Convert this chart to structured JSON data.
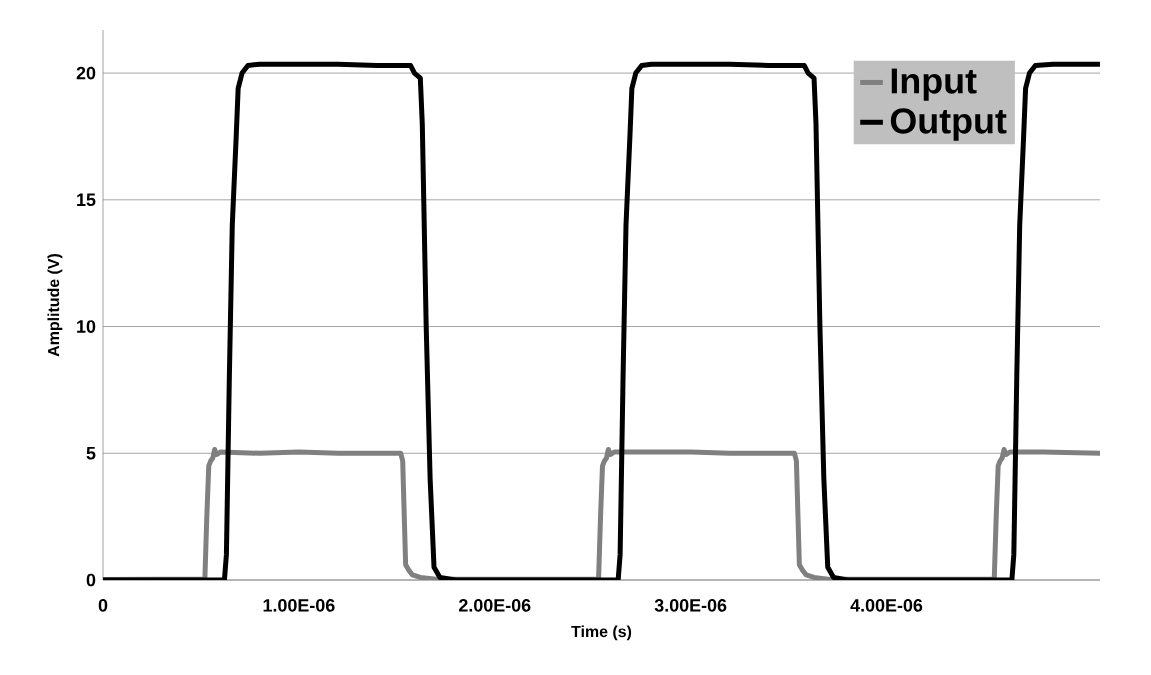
{
  "chart_data": {
    "type": "line",
    "xlabel": "Time (s)",
    "ylabel": "Amplitude (V)",
    "xlim": [
      0,
      5.09e-06
    ],
    "ylim": [
      0,
      21.7
    ],
    "xticks": [
      0,
      {
        "value": 1e-06,
        "label": "1.00E-06"
      },
      {
        "value": 2e-06,
        "label": "2.00E-06"
      },
      {
        "value": 3e-06,
        "label": "3.00E-06"
      },
      {
        "value": 4e-06,
        "label": "4.00E-06"
      }
    ],
    "yticks": [
      0,
      5,
      10,
      15,
      20
    ],
    "grid": "y",
    "legend": "top right",
    "marker": "none",
    "line_style": "solid",
    "series": [
      {
        "name": "Input",
        "color": "#808080",
        "x": [
          0,
          3e-07,
          5.2e-07,
          5.3e-07,
          5.4e-07,
          5.5e-07,
          5.6e-07,
          5.7e-07,
          5.8e-07,
          6e-07,
          8e-07,
          1e-06,
          1.2e-06,
          1.4e-06,
          1.52e-06,
          1.53e-06,
          1.545e-06,
          1.56e-06,
          1.58e-06,
          1.62e-06,
          1.7e-06,
          2e-06,
          2.3e-06,
          2.53e-06,
          2.54e-06,
          2.55e-06,
          2.56e-06,
          2.57e-06,
          2.58e-06,
          2.59e-06,
          2.61e-06,
          2.8e-06,
          3e-06,
          3.2e-06,
          3.4e-06,
          3.53e-06,
          3.54e-06,
          3.555e-06,
          3.57e-06,
          3.59e-06,
          3.63e-06,
          3.7e-06,
          4e-06,
          4.3e-06,
          4.55e-06,
          4.56e-06,
          4.57e-06,
          4.58e-06,
          4.59e-06,
          4.6e-06,
          4.61e-06,
          4.63e-06,
          4.8e-06,
          5.09e-06
        ],
        "values": [
          0.02,
          0.03,
          0.03,
          2.5,
          4.5,
          4.7,
          4.8,
          5.15,
          4.95,
          5.05,
          5.0,
          5.05,
          5.0,
          5.0,
          5.0,
          4.7,
          0.6,
          0.4,
          0.2,
          0.1,
          0.03,
          0.03,
          0.03,
          0.03,
          2.5,
          4.5,
          4.7,
          4.8,
          5.15,
          4.95,
          5.05,
          5.05,
          5.05,
          5.0,
          5.0,
          5.0,
          4.7,
          0.6,
          0.4,
          0.2,
          0.1,
          0.03,
          0.03,
          0.03,
          0.03,
          2.5,
          4.5,
          4.7,
          4.8,
          5.15,
          4.95,
          5.05,
          5.05,
          5.0
        ]
      },
      {
        "name": "Output",
        "color": "#000000",
        "x": [
          0,
          3e-07,
          6.2e-07,
          6.3e-07,
          6.45e-07,
          6.6e-07,
          6.8e-07,
          6.9e-07,
          7.1e-07,
          7.4e-07,
          8e-07,
          1e-06,
          1.2e-06,
          1.4e-06,
          1.57e-06,
          1.59e-06,
          1.62e-06,
          1.63e-06,
          1.65e-06,
          1.67e-06,
          1.69e-06,
          1.72e-06,
          1.8e-06,
          2.2e-06,
          2.63e-06,
          2.64e-06,
          2.655e-06,
          2.67e-06,
          2.69e-06,
          2.7e-06,
          2.72e-06,
          2.75e-06,
          2.8e-06,
          3e-06,
          3.2e-06,
          3.4e-06,
          3.58e-06,
          3.6e-06,
          3.63e-06,
          3.64e-06,
          3.66e-06,
          3.68e-06,
          3.7e-06,
          3.73e-06,
          3.8e-06,
          4.2e-06,
          4.64e-06,
          4.65e-06,
          4.665e-06,
          4.68e-06,
          4.7e-06,
          4.71e-06,
          4.73e-06,
          4.76e-06,
          4.85e-06,
          5.09e-06
        ],
        "values": [
          0,
          0,
          0,
          1.0,
          8,
          14,
          17.5,
          19.4,
          20.0,
          20.3,
          20.35,
          20.35,
          20.35,
          20.3,
          20.3,
          20.0,
          19.8,
          18,
          10,
          4,
          0.5,
          0.1,
          0,
          0,
          0,
          1.0,
          8,
          14,
          17.5,
          19.4,
          20.0,
          20.3,
          20.35,
          20.35,
          20.35,
          20.3,
          20.3,
          20.0,
          19.8,
          18,
          10,
          4,
          0.5,
          0.1,
          0,
          0,
          0,
          1.0,
          8,
          14,
          17.5,
          19.4,
          20.0,
          20.3,
          20.35,
          20.35
        ]
      }
    ]
  }
}
